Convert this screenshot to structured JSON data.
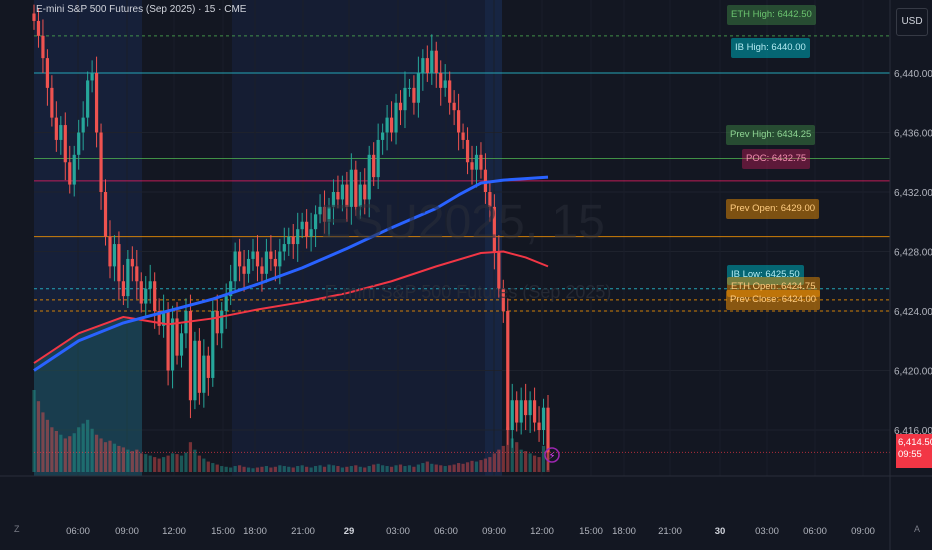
{
  "header": {
    "title": "E-mini S&P 500 Futures (Sep 2025) · 15 · CME",
    "currency": "USD"
  },
  "watermark": {
    "symbol": "ESU2025, 15",
    "description": "E-mini S&P 500 Futures (Sep 2025)"
  },
  "axes": {
    "y_ticks": [
      "6,440.00",
      "6,436.00",
      "6,432.00",
      "6,428.00",
      "6,424.00",
      "6,420.00",
      "6,416.00"
    ],
    "x_ticks": [
      "06:00",
      "09:00",
      "12:00",
      "15:00",
      "18:00",
      "21:00",
      "29",
      "03:00",
      "06:00",
      "09:00",
      "12:00",
      "15:00",
      "18:00",
      "21:00",
      "30",
      "03:00",
      "06:00",
      "09:00"
    ],
    "left_marker": "Z",
    "right_marker": "A"
  },
  "last_price": {
    "value": "6,414.50",
    "countdown": "09:55"
  },
  "colors": {
    "up": "#26a69a",
    "down": "#ef5350",
    "ema_fast": "#2962ff",
    "ema_slow": "#f23645",
    "background": "#131722",
    "session_shade": "#17203a"
  },
  "chart_data": {
    "type": "candlestick",
    "ylim": [
      6412.5,
      6443.5
    ],
    "x_index_range": [
      0,
      126
    ],
    "levels": [
      {
        "name": "ETH High",
        "label": "ETH High: 6442.50",
        "value": 6442.5,
        "color": "#4caf50",
        "dashed": true
      },
      {
        "name": "IB High",
        "label": "IB High: 6440.00",
        "value": 6440.0,
        "color": "#26c6da",
        "dashed": false
      },
      {
        "name": "Prev High",
        "label": "Prev High: 6434.25",
        "value": 6434.25,
        "color": "#4caf50",
        "dashed": false
      },
      {
        "name": "POC",
        "label": "POC: 6432.75",
        "value": 6432.75,
        "color": "#e91e63",
        "dashed": false
      },
      {
        "name": "Prev Open",
        "label": "Prev Open: 6429.00",
        "value": 6429.0,
        "color": "#ff9800",
        "dashed": false
      },
      {
        "name": "IB Low",
        "label": "IB Low: 6425.50",
        "value": 6425.5,
        "color": "#26c6da",
        "dashed": true
      },
      {
        "name": "ETH Open",
        "label": "ETH Open: 6424.75",
        "value": 6424.75,
        "color": "#ff9800",
        "dashed": true
      },
      {
        "name": "Prev Close",
        "label": "Prev Close: 6424.00",
        "value": 6424.0,
        "color": "#ff9800",
        "dashed": true
      }
    ],
    "close": [
      6443.5,
      6442.5,
      6441.0,
      6439.0,
      6437.0,
      6435.5,
      6436.5,
      6434.0,
      6432.5,
      6434.5,
      6436.0,
      6437.0,
      6439.5,
      6440.0,
      6436.0,
      6432.0,
      6429.0,
      6427.0,
      6428.5,
      6426.0,
      6425.0,
      6427.5,
      6427.0,
      6426.0,
      6424.5,
      6425.5,
      6426.0,
      6424.0,
      6423.0,
      6424.0,
      6420.0,
      6423.5,
      6421.0,
      6422.5,
      6424.0,
      6418.0,
      6422.0,
      6418.5,
      6421.0,
      6419.5,
      6424.0,
      6422.5,
      6424.0,
      6425.0,
      6426.0,
      6428.0,
      6427.0,
      6426.5,
      6427.5,
      6428.0,
      6427.0,
      6426.5,
      6428.0,
      6427.5,
      6427.0,
      6428.0,
      6428.5,
      6429.0,
      6428.5,
      6429.5,
      6430.0,
      6429.0,
      6429.5,
      6430.5,
      6431.0,
      6430.0,
      6431.0,
      6432.0,
      6431.5,
      6432.5,
      6431.0,
      6433.5,
      6431.0,
      6432.5,
      6431.5,
      6434.5,
      6433.0,
      6435.5,
      6436.0,
      6437.0,
      6436.0,
      6438.0,
      6437.5,
      6439.0,
      6439.0,
      6438.0,
      6440.0,
      6441.0,
      6440.0,
      6441.5,
      6440.0,
      6439.0,
      6439.5,
      6438.0,
      6437.5,
      6436.0,
      6435.5,
      6434.0,
      6433.5,
      6434.5,
      6433.5,
      6432.0,
      6431.0,
      6428.0,
      6425.5,
      6424.0,
      6416.0,
      6418.0,
      6416.5,
      6418.0,
      6417.0,
      6418.0,
      6416.5,
      6416.0,
      6417.5,
      6414.5
    ],
    "ema_fast": [
      [
        0,
        6420.0
      ],
      [
        10,
        6422.0
      ],
      [
        20,
        6423.2
      ],
      [
        30,
        6424.0
      ],
      [
        40,
        6424.8
      ],
      [
        50,
        6425.8
      ],
      [
        60,
        6426.9
      ],
      [
        70,
        6428.2
      ],
      [
        80,
        6429.6
      ],
      [
        90,
        6430.9
      ],
      [
        95,
        6431.8
      ],
      [
        100,
        6432.6
      ],
      [
        105,
        6432.8
      ],
      [
        110,
        6432.9
      ],
      [
        115,
        6433.0
      ]
    ],
    "ema_slow": [
      [
        0,
        6420.5
      ],
      [
        10,
        6422.5
      ],
      [
        20,
        6423.6
      ],
      [
        30,
        6423.1
      ],
      [
        40,
        6423.5
      ],
      [
        50,
        6424.1
      ],
      [
        60,
        6424.6
      ],
      [
        70,
        6425.2
      ],
      [
        80,
        6426.0
      ],
      [
        90,
        6427.0
      ],
      [
        100,
        6427.9
      ],
      [
        105,
        6428.0
      ],
      [
        110,
        6427.6
      ],
      [
        115,
        6427.0
      ]
    ],
    "volume": [
      110,
      95,
      80,
      70,
      60,
      55,
      50,
      45,
      48,
      52,
      60,
      65,
      70,
      58,
      50,
      45,
      40,
      42,
      38,
      35,
      33,
      30,
      28,
      30,
      25,
      24,
      22,
      20,
      18,
      20,
      22,
      25,
      24,
      22,
      26,
      40,
      30,
      22,
      18,
      14,
      12,
      10,
      8,
      7,
      6,
      8,
      9,
      7,
      6,
      5,
      6,
      7,
      8,
      6,
      7,
      9,
      8,
      7,
      6,
      8,
      9,
      7,
      6,
      8,
      9,
      7,
      10,
      9,
      8,
      6,
      7,
      8,
      9,
      7,
      6,
      8,
      10,
      11,
      9,
      8,
      7,
      9,
      10,
      8,
      9,
      7,
      10,
      12,
      14,
      11,
      10,
      9,
      8,
      9,
      10,
      12,
      11,
      13,
      15,
      14,
      16,
      18,
      20,
      25,
      30,
      35,
      60,
      45,
      40,
      30,
      28,
      25,
      22,
      20,
      35,
      30
    ]
  }
}
